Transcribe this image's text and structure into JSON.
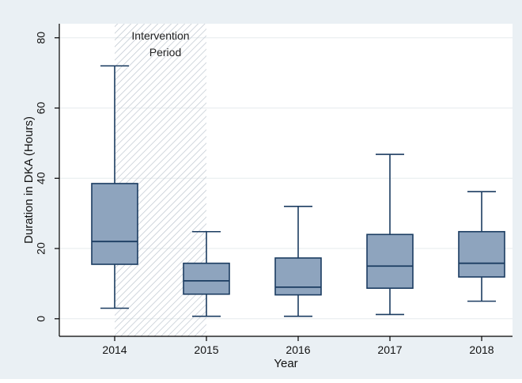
{
  "chart_data": {
    "type": "box",
    "xlabel": "Year",
    "ylabel": "Duration in DKA (Hours)",
    "categories": [
      "2014",
      "2015",
      "2016",
      "2017",
      "2018"
    ],
    "ylim": [
      -5,
      84
    ],
    "yticks": [
      0,
      20,
      40,
      60,
      80
    ],
    "grid": "horizontal",
    "boxes": [
      {
        "category": "2014",
        "min": 3,
        "q1": 15.5,
        "median": 22,
        "q3": 38.5,
        "max": 72
      },
      {
        "category": "2015",
        "min": 0.7,
        "q1": 7,
        "median": 10.8,
        "q3": 15.8,
        "max": 24.8
      },
      {
        "category": "2016",
        "min": 0.7,
        "q1": 6.8,
        "median": 9,
        "q3": 17.3,
        "max": 32
      },
      {
        "category": "2017",
        "min": 1.2,
        "q1": 8.7,
        "median": 15,
        "q3": 24,
        "max": 46.8
      },
      {
        "category": "2018",
        "min": 5,
        "q1": 11.9,
        "median": 15.8,
        "q3": 24.8,
        "max": 36.2
      }
    ],
    "annotation": {
      "label_line1": "Intervention",
      "label_line2": "Period",
      "x_from_category": "2014",
      "x_to_category": "2015"
    },
    "colors": {
      "outer_background": "#eaf0f4",
      "plot_background": "#ffffff",
      "grid": "#e6ebee",
      "box_fill": "#8ea4be",
      "box_stroke": "#1b3c61",
      "hatch": "#bdc6cf",
      "axis": "#000000"
    }
  }
}
